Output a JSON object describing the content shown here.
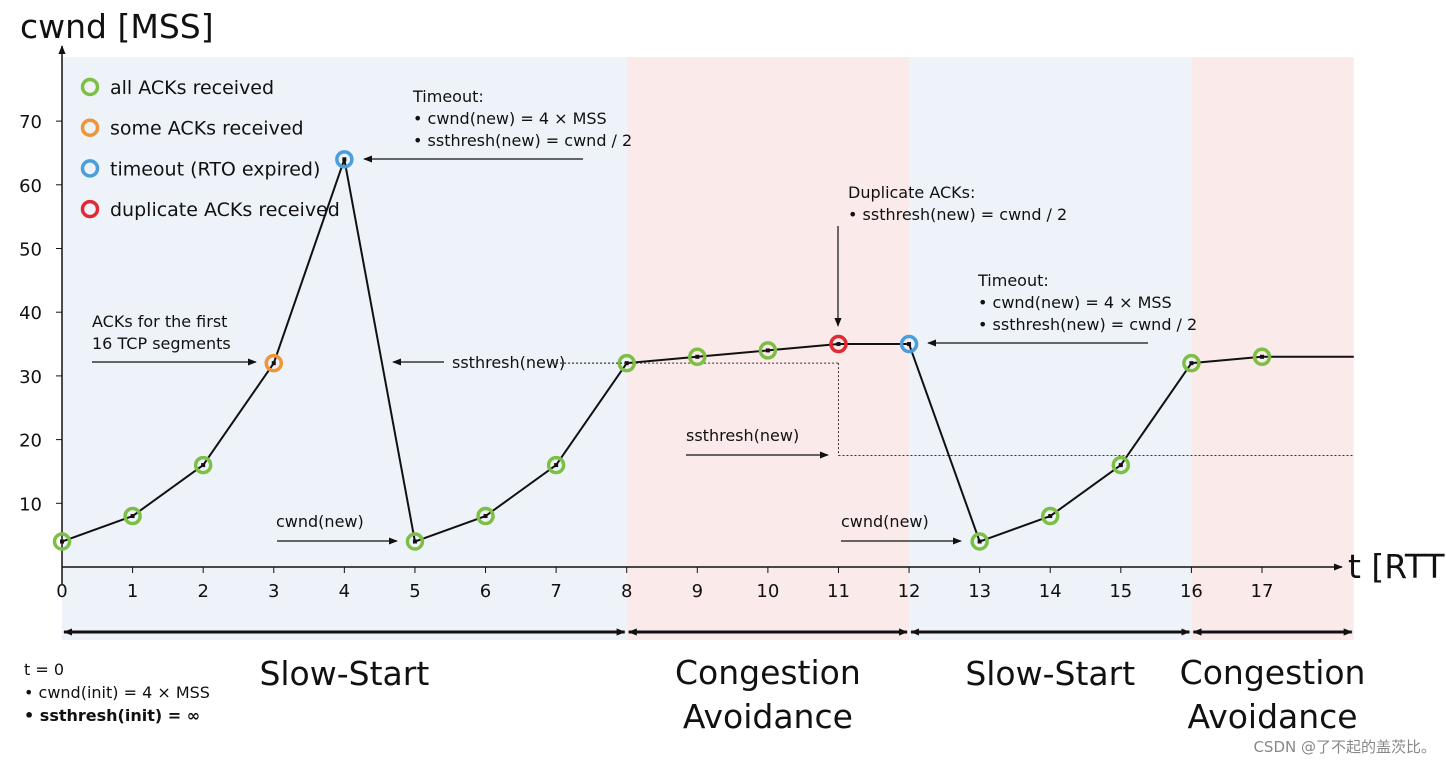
{
  "chart_data": {
    "type": "line",
    "ylabel": "cwnd [MSS]",
    "xlabel": "t [RTT]",
    "xlim": [
      0,
      18.3
    ],
    "ylim": [
      0,
      74
    ],
    "x_ticks": [
      0,
      1,
      2,
      3,
      4,
      5,
      6,
      7,
      8,
      9,
      10,
      11,
      12,
      13,
      14,
      15,
      16,
      17
    ],
    "y_ticks": [
      10,
      20,
      30,
      40,
      50,
      60,
      70
    ],
    "grid": false,
    "legend_placement": "top-left",
    "colors": {
      "all_acks": "#7dbe44",
      "some_acks": "#f0943a",
      "timeout": "#4a9edb",
      "duplicate": "#e02a35",
      "slow_start_bg": "#edf3f9",
      "congestion_avoidance_bg": "#fbeaea"
    },
    "legend": [
      {
        "key": "all",
        "label": "all ACKs received",
        "color": "#7dbe44"
      },
      {
        "key": "some",
        "label": "some ACKs received",
        "color": "#f0943a"
      },
      {
        "key": "timeout",
        "label": "timeout (RTO expired)",
        "color": "#4a9edb"
      },
      {
        "key": "dup",
        "label": "duplicate ACKs received",
        "color": "#e02a35"
      }
    ],
    "series": [
      {
        "x": [
          0,
          1,
          2,
          3,
          4,
          5,
          6,
          7,
          8,
          9,
          10,
          11,
          12,
          13,
          14,
          15,
          16,
          17
        ],
        "y": [
          4,
          8,
          16,
          32,
          64,
          4,
          8,
          16,
          32,
          33,
          34,
          35,
          35,
          4,
          8,
          16,
          32,
          33
        ],
        "status": [
          "all",
          "all",
          "all",
          "some",
          "timeout",
          "all",
          "all",
          "all",
          "all",
          "all",
          "all",
          "dup",
          "timeout",
          "all",
          "all",
          "all",
          "all",
          "all"
        ]
      }
    ],
    "line_continues_to": {
      "x": 18.3,
      "y": 33
    },
    "ssthresh_lines": [
      {
        "y": 32,
        "x_from": 7,
        "x_to": 11
      },
      {
        "y": 17.5,
        "x_from": 11,
        "x_to": 18.3
      }
    ],
    "phases": [
      {
        "label": "Slow-Start",
        "x_from": 0,
        "x_to": 8,
        "bg": "slow"
      },
      {
        "label": "Congestion\nAvoidance",
        "x_from": 8,
        "x_to": 12,
        "bg": "ca"
      },
      {
        "label": "Slow-Start",
        "x_from": 12,
        "x_to": 16,
        "bg": "slow"
      },
      {
        "label": "Congestion\nAvoidance",
        "x_from": 16,
        "x_to": 18.3,
        "bg": "ca"
      }
    ],
    "annotations": [
      {
        "lines": [
          "ACKs for the first",
          "16 TCP segments"
        ]
      },
      {
        "lines": [
          "Timeout:",
          "• cwnd(new) = 4 × MSS",
          "• ssthresh(new) = cwnd / 2"
        ]
      },
      {
        "lines": [
          "ssthresh(new)"
        ]
      },
      {
        "lines": [
          "cwnd(new)"
        ]
      },
      {
        "lines": [
          "Duplicate ACKs:",
          "• ssthresh(new) = cwnd / 2"
        ]
      },
      {
        "lines": [
          "ssthresh(new)"
        ]
      },
      {
        "lines": [
          "Timeout:",
          "• cwnd(new) = 4 × MSS",
          "• ssthresh(new) = cwnd / 2"
        ]
      },
      {
        "lines": [
          "cwnd(new)"
        ]
      },
      {
        "lines": [
          "t = 0",
          "• cwnd(init) = 4 × MSS",
          "• ssthresh(init) = ∞"
        ]
      }
    ],
    "watermark": "CSDN @了不起的盖茨比。"
  }
}
